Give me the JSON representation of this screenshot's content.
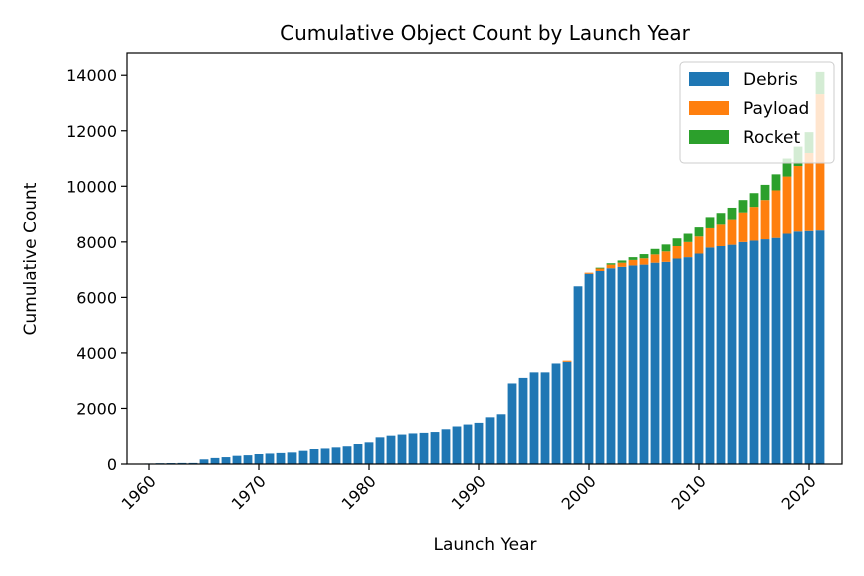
{
  "chart_data": {
    "type": "bar",
    "stacked": true,
    "title": "Cumulative Object Count by Launch Year",
    "xlabel": "Launch Year",
    "ylabel": "Cumulative Count",
    "xlim": [
      1958,
      2023
    ],
    "ylim": [
      0,
      14800
    ],
    "x_ticks": [
      1960,
      1970,
      1980,
      1990,
      2000,
      2010,
      2020
    ],
    "y_ticks": [
      0,
      2000,
      4000,
      6000,
      8000,
      10000,
      12000,
      14000
    ],
    "x_tick_rotation": 45,
    "legend_position": "top-right",
    "grid": false,
    "x": [
      1959,
      1960,
      1961,
      1962,
      1963,
      1964,
      1965,
      1966,
      1967,
      1968,
      1969,
      1970,
      1971,
      1972,
      1973,
      1974,
      1975,
      1976,
      1977,
      1978,
      1979,
      1980,
      1981,
      1982,
      1983,
      1984,
      1985,
      1986,
      1987,
      1988,
      1989,
      1990,
      1991,
      1992,
      1993,
      1994,
      1995,
      1996,
      1997,
      1998,
      1999,
      2000,
      2001,
      2002,
      2003,
      2004,
      2005,
      2006,
      2007,
      2008,
      2009,
      2010,
      2011,
      2012,
      2013,
      2014,
      2015,
      2016,
      2017,
      2018,
      2019,
      2020,
      2021
    ],
    "series": [
      {
        "name": "Debris",
        "color": "#1f77b4",
        "values": [
          10,
          20,
          30,
          35,
          40,
          40,
          170,
          220,
          250,
          300,
          320,
          360,
          380,
          400,
          420,
          480,
          540,
          560,
          600,
          640,
          720,
          780,
          960,
          1020,
          1060,
          1100,
          1120,
          1150,
          1250,
          1350,
          1420,
          1480,
          1680,
          1790,
          2900,
          3100,
          3300,
          3300,
          3620,
          3680,
          6400,
          6850,
          6950,
          7050,
          7100,
          7150,
          7180,
          7250,
          7280,
          7400,
          7450,
          7580,
          7800,
          7850,
          7900,
          8000,
          8050,
          8100,
          8150,
          8300,
          8380,
          8400,
          8420
        ]
      },
      {
        "name": "Payload",
        "color": "#ff7f0e",
        "values": [
          0,
          0,
          0,
          0,
          0,
          0,
          0,
          0,
          0,
          0,
          0,
          0,
          0,
          0,
          0,
          0,
          0,
          0,
          0,
          0,
          0,
          0,
          0,
          0,
          0,
          0,
          0,
          0,
          0,
          0,
          0,
          0,
          0,
          0,
          0,
          0,
          0,
          0,
          0,
          40,
          0,
          40,
          90,
          130,
          150,
          200,
          230,
          300,
          380,
          450,
          550,
          620,
          700,
          780,
          900,
          1050,
          1200,
          1400,
          1700,
          2050,
          2350,
          2800,
          4900
        ]
      },
      {
        "name": "Rocket",
        "color": "#2ca02c",
        "values": [
          0,
          0,
          0,
          0,
          0,
          0,
          0,
          0,
          0,
          0,
          0,
          0,
          0,
          0,
          0,
          0,
          0,
          0,
          0,
          0,
          0,
          0,
          0,
          0,
          0,
          0,
          0,
          0,
          0,
          0,
          0,
          0,
          0,
          0,
          0,
          0,
          0,
          0,
          0,
          0,
          0,
          0,
          30,
          50,
          80,
          100,
          150,
          200,
          250,
          280,
          300,
          330,
          380,
          400,
          420,
          450,
          500,
          550,
          580,
          650,
          700,
          750,
          800
        ]
      }
    ]
  }
}
